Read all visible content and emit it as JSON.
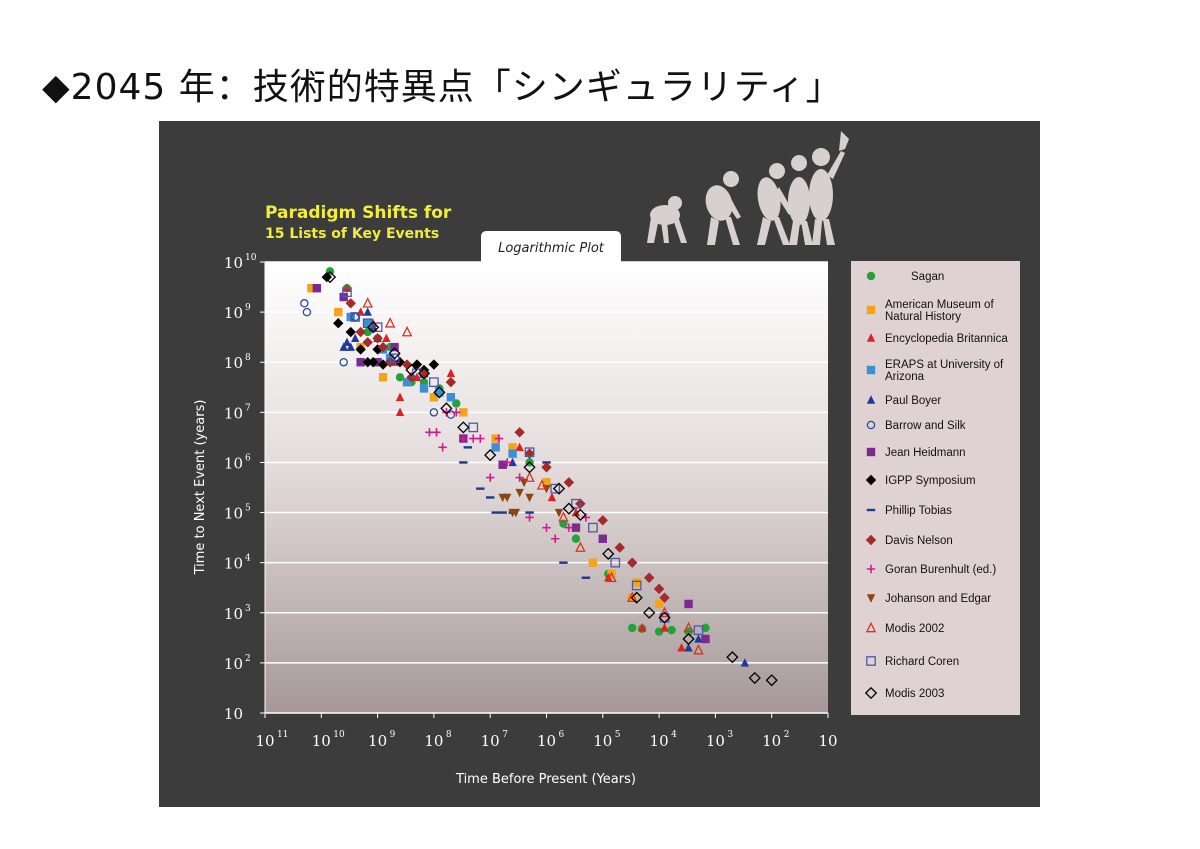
{
  "slide": {
    "title": "◆2045 年：技術的特異点「シンギュラリティ」"
  },
  "figure": {
    "heading_line1": "Paradigm Shifts for",
    "heading_line2": "15 Lists of Key Events",
    "plot_tab": "Logarithmic Plot",
    "xlabel": "Time Before Present (Years)",
    "ylabel": "Time to Next Event (years)"
  },
  "chart_data": {
    "type": "scatter",
    "title": "Paradigm Shifts for 15 Lists of Key Events",
    "subtitle": "Logarithmic Plot",
    "xlabel": "Time Before Present (Years)",
    "ylabel": "Time to Next Event (years)",
    "x_scale": "log",
    "y_scale": "log",
    "x_reversed": true,
    "xlim": [
      100000000000.0,
      10
    ],
    "ylim": [
      10,
      10000000000.0
    ],
    "x_ticks": [
      {
        "base": "10",
        "exp": "11"
      },
      {
        "base": "10",
        "exp": "10"
      },
      {
        "base": "10",
        "exp": "9"
      },
      {
        "base": "10",
        "exp": "8"
      },
      {
        "base": "10",
        "exp": "7"
      },
      {
        "base": "10",
        "exp": "6"
      },
      {
        "base": "10",
        "exp": "5"
      },
      {
        "base": "10",
        "exp": "4"
      },
      {
        "base": "10",
        "exp": "3"
      },
      {
        "base": "10",
        "exp": "2"
      },
      {
        "base": "10",
        "exp": ""
      }
    ],
    "y_ticks": [
      {
        "base": "10",
        "exp": "10"
      },
      {
        "base": "10",
        "exp": "9"
      },
      {
        "base": "10",
        "exp": "8"
      },
      {
        "base": "10",
        "exp": "7"
      },
      {
        "base": "10",
        "exp": "6"
      },
      {
        "base": "10",
        "exp": "5"
      },
      {
        "base": "10",
        "exp": "4"
      },
      {
        "base": "10",
        "exp": "3"
      },
      {
        "base": "10",
        "exp": "2"
      },
      {
        "base": "10",
        "exp": ""
      }
    ],
    "grid": true,
    "legend_position": "right",
    "series": [
      {
        "name": "Sagan",
        "marker": "circle",
        "color": "#22a33a",
        "points": [
          [
            7000000000.0,
            6500000000.0
          ],
          [
            3500000000.0,
            3000000000.0
          ],
          [
            1500000000.0,
            400000000.0
          ],
          [
            1000000000.0,
            300000000.0
          ],
          [
            600000000.0,
            200000000.0
          ],
          [
            400000000.0,
            50000000.0
          ],
          [
            250000000.0,
            40000000.0
          ],
          [
            150000000.0,
            40000000.0
          ],
          [
            80000000.0,
            30000000.0
          ],
          [
            40000000.0,
            15000000.0
          ],
          [
            2000000.0,
            1000000.0
          ],
          [
            1000000.0,
            400000.0
          ],
          [
            500000.0,
            60000.0
          ],
          [
            300000.0,
            30000.0
          ],
          [
            150000.0,
            10000.0
          ],
          [
            80000.0,
            6000.0
          ],
          [
            30000.0,
            500
          ],
          [
            20000.0,
            480
          ],
          [
            10000.0,
            420
          ],
          [
            6000.0,
            450
          ],
          [
            3000.0,
            420
          ],
          [
            1500.0,
            500
          ]
        ]
      },
      {
        "name": "American Museum of Natural History",
        "marker": "square",
        "color": "#f5a31a",
        "points": [
          [
            15000000000.0,
            3000000000.0
          ],
          [
            5000000000.0,
            1000000000.0
          ],
          [
            2000000000.0,
            200000000.0
          ],
          [
            800000000.0,
            50000000.0
          ],
          [
            300000000.0,
            40000000.0
          ],
          [
            100000000.0,
            20000000.0
          ],
          [
            30000000.0,
            10000000.0
          ],
          [
            8000000.0,
            3000000.0
          ],
          [
            4000000.0,
            2000000.0
          ],
          [
            1000000.0,
            400000.0
          ],
          [
            150000.0,
            10000.0
          ],
          [
            70000.0,
            6000.0
          ],
          [
            30000.0,
            2000.0
          ],
          [
            25000.0,
            4000.0
          ],
          [
            10000.0,
            1500.0
          ]
        ]
      },
      {
        "name": "Encyclopedia Britannica",
        "marker": "triangle-up",
        "color": "#e02020",
        "points": [
          [
            3500000000.0,
            3000000000.0
          ],
          [
            2000000000.0,
            1000000000.0
          ],
          [
            1200000000.0,
            600000000.0
          ],
          [
            700000000.0,
            300000000.0
          ],
          [
            500000000.0,
            100000000.0
          ],
          [
            400000000.0,
            20000000.0
          ],
          [
            400000000.0,
            10000000.0
          ],
          [
            200000000.0,
            50000000.0
          ],
          [
            50000000.0,
            60000000.0
          ],
          [
            3000000.0,
            2000000.0
          ],
          [
            800000.0,
            200000.0
          ],
          [
            300000.0,
            100000.0
          ],
          [
            80000.0,
            5000.0
          ],
          [
            20000.0,
            500
          ],
          [
            8000.0,
            500
          ],
          [
            4000.0,
            200
          ]
        ]
      },
      {
        "name": "ERAPS at University of Arizona",
        "marker": "square",
        "color": "#3b8fd6",
        "points": [
          [
            3000000000.0,
            800000000.0
          ],
          [
            1500000000.0,
            600000000.0
          ],
          [
            800000000.0,
            180000000.0
          ],
          [
            600000000.0,
            120000000.0
          ],
          [
            300000000.0,
            40000000.0
          ],
          [
            150000000.0,
            30000000.0
          ],
          [
            80000000.0,
            25000000.0
          ],
          [
            50000000.0,
            20000000.0
          ],
          [
            8000000.0,
            2000000.0
          ],
          [
            4000000.0,
            1500000.0
          ]
        ]
      },
      {
        "name": "Paul Boyer",
        "marker": "triangle-up",
        "color": "#1e3a9a",
        "points": [
          [
            4000000000.0,
            200000000.0
          ],
          [
            3500000000.0,
            250000000.0
          ],
          [
            3000000000.0,
            200000000.0
          ],
          [
            2500000000.0,
            300000000.0
          ],
          [
            2000000000.0,
            100000000.0
          ],
          [
            1500000000.0,
            1000000000.0
          ],
          [
            1200000000.0,
            500000000.0
          ],
          [
            1000000000.0,
            300000000.0
          ],
          [
            4000000.0,
            1000000.0
          ],
          [
            3000.0,
            200
          ],
          [
            2000.0,
            300
          ],
          [
            300,
            100
          ]
        ]
      },
      {
        "name": "Barrow and Silk",
        "marker": "circle-open",
        "color": "#2a4a9a",
        "points": [
          [
            20000000000.0,
            1500000000.0
          ],
          [
            18000000000.0,
            1000000000.0
          ],
          [
            4000000000.0,
            100000000.0
          ],
          [
            2500000000.0,
            800000000.0
          ],
          [
            100000000.0,
            10000000.0
          ],
          [
            50000000.0,
            9000000.0
          ]
        ]
      },
      {
        "name": "Jean Heidmann",
        "marker": "square",
        "color": "#7a2a90",
        "points": [
          [
            12000000000.0,
            3000000000.0
          ],
          [
            4000000000.0,
            2000000000.0
          ],
          [
            2000000000.0,
            100000000.0
          ],
          [
            1000000000.0,
            100000000.0
          ],
          [
            500000000.0,
            200000000.0
          ],
          [
            150000000.0,
            60000000.0
          ],
          [
            30000000.0,
            3000000.0
          ],
          [
            6000000.0,
            900000.0
          ],
          [
            300000.0,
            50000.0
          ],
          [
            100000.0,
            30000.0
          ],
          [
            3000.0,
            1500.0
          ],
          [
            1500.0,
            300
          ]
        ]
      },
      {
        "name": "IGPP Symposium",
        "marker": "diamond",
        "color": "#000000",
        "points": [
          [
            8000000000.0,
            5000000000.0
          ],
          [
            5000000000.0,
            600000000.0
          ],
          [
            3000000000.0,
            400000000.0
          ],
          [
            2000000000.0,
            180000000.0
          ],
          [
            1500000000.0,
            100000000.0
          ],
          [
            1200000000.0,
            100000000.0
          ],
          [
            1000000000.0,
            180000000.0
          ],
          [
            800000000.0,
            90000000.0
          ],
          [
            600000000.0,
            100000000.0
          ],
          [
            400000000.0,
            100000000.0
          ],
          [
            200000000.0,
            90000000.0
          ],
          [
            150000000.0,
            70000000.0
          ],
          [
            100000000.0,
            90000000.0
          ]
        ]
      },
      {
        "name": "Phillip Tobias",
        "marker": "dash",
        "color": "#1e3a8a",
        "points": [
          [
            30000000.0,
            1000000.0
          ],
          [
            25000000.0,
            2000000.0
          ],
          [
            15000000.0,
            300000.0
          ],
          [
            10000000.0,
            200000.0
          ],
          [
            8000000.0,
            100000.0
          ],
          [
            6000000.0,
            100000.0
          ],
          [
            4000000.0,
            100000.0
          ],
          [
            2000000.0,
            100000.0
          ],
          [
            1000000.0,
            1000000.0
          ],
          [
            500000.0,
            10000.0
          ],
          [
            200000.0,
            5000.0
          ]
        ]
      },
      {
        "name": "Davis Nelson",
        "marker": "diamond",
        "color": "#a52a2a",
        "points": [
          [
            3000000000.0,
            1500000000.0
          ],
          [
            2000000000.0,
            400000000.0
          ],
          [
            1500000000.0,
            250000000.0
          ],
          [
            1000000000.0,
            300000000.0
          ],
          [
            800000000.0,
            200000000.0
          ],
          [
            600000000.0,
            100000000.0
          ],
          [
            300000000.0,
            90000000.0
          ],
          [
            250000000.0,
            50000000.0
          ],
          [
            150000000.0,
            60000000.0
          ],
          [
            50000000.0,
            40000000.0
          ],
          [
            3000000.0,
            4000000.0
          ],
          [
            2000000.0,
            1500000.0
          ],
          [
            1000000.0,
            800000.0
          ],
          [
            400000.0,
            400000.0
          ],
          [
            250000.0,
            150000.0
          ],
          [
            100000.0,
            70000.0
          ],
          [
            50000.0,
            20000.0
          ],
          [
            30000.0,
            10000.0
          ],
          [
            15000.0,
            5000.0
          ],
          [
            10000.0,
            3000.0
          ],
          [
            8000.0,
            2000.0
          ]
        ]
      },
      {
        "name": "Goran Burenhult (ed.)",
        "marker": "plus",
        "color": "#d6188f",
        "points": [
          [
            120000000.0,
            4000000.0
          ],
          [
            90000000.0,
            4000000.0
          ],
          [
            70000000.0,
            2000000.0
          ],
          [
            60000000.0,
            10000000.0
          ],
          [
            40000000.0,
            10000000.0
          ],
          [
            30000000.0,
            3000000.0
          ],
          [
            20000000.0,
            3000000.0
          ],
          [
            15000000.0,
            3000000.0
          ],
          [
            10000000.0,
            500000.0
          ],
          [
            7000000.0,
            3000000.0
          ],
          [
            5000000.0,
            1000000.0
          ],
          [
            3000000.0,
            500000.0
          ],
          [
            2000000.0,
            80000.0
          ],
          [
            1000000.0,
            50000.0
          ],
          [
            700000.0,
            30000.0
          ],
          [
            400000.0,
            50000.0
          ],
          [
            200000.0,
            80000.0
          ]
        ]
      },
      {
        "name": "Johanson and Edgar",
        "marker": "triangle-down",
        "color": "#8b4513",
        "points": [
          [
            6000000.0,
            200000.0
          ],
          [
            5000000.0,
            200000.0
          ],
          [
            4000000.0,
            100000.0
          ],
          [
            3500000.0,
            100000.0
          ],
          [
            3000000.0,
            250000.0
          ],
          [
            2500000.0,
            400000.0
          ],
          [
            2000000.0,
            200000.0
          ],
          [
            1000000.0,
            300000.0
          ],
          [
            600000.0,
            100000.0
          ]
        ]
      },
      {
        "name": "Modis 2002",
        "marker": "triangle-open",
        "color": "#e03020",
        "points": [
          [
            1500000000.0,
            1500000000.0
          ],
          [
            600000000.0,
            600000000.0
          ],
          [
            300000000.0,
            400000000.0
          ],
          [
            2000000.0,
            500000.0
          ],
          [
            1200000.0,
            350000.0
          ],
          [
            500000.0,
            80000.0
          ],
          [
            250000.0,
            20000.0
          ],
          [
            70000.0,
            5000.0
          ],
          [
            30000.0,
            2000.0
          ],
          [
            8000.0,
            1000.0
          ],
          [
            3000.0,
            500
          ],
          [
            2000.0,
            180
          ]
        ]
      },
      {
        "name": "Richard Coren",
        "marker": "square-open",
        "color": "#4a5aa8",
        "points": [
          [
            3500000000.0,
            2500000000.0
          ],
          [
            2500000000.0,
            800000000.0
          ],
          [
            1500000000.0,
            600000000.0
          ],
          [
            1000000000.0,
            500000000.0
          ],
          [
            500000000.0,
            120000000.0
          ],
          [
            200000000.0,
            60000000.0
          ],
          [
            100000000.0,
            40000000.0
          ],
          [
            20000000.0,
            5000000.0
          ],
          [
            2000000.0,
            1600000.0
          ],
          [
            700000.0,
            300000.0
          ],
          [
            300000.0,
            150000.0
          ],
          [
            150000.0,
            50000.0
          ],
          [
            60000.0,
            10000.0
          ],
          [
            25000.0,
            3500.0
          ],
          [
            8000.0,
            800
          ],
          [
            2000.0,
            450
          ]
        ]
      },
      {
        "name": "Modis 2003",
        "marker": "diamond-open",
        "color": "#000000",
        "points": [
          [
            7000000000.0,
            5000000000.0
          ],
          [
            1200000000.0,
            500000000.0
          ],
          [
            500000000.0,
            150000000.0
          ],
          [
            250000000.0,
            70000000.0
          ],
          [
            150000000.0,
            60000000.0
          ],
          [
            80000000.0,
            25000000.0
          ],
          [
            60000000.0,
            12000000.0
          ],
          [
            30000000.0,
            5000000.0
          ],
          [
            10000000.0,
            1400000.0
          ],
          [
            2000000.0,
            800000.0
          ],
          [
            600000.0,
            300000.0
          ],
          [
            400000.0,
            120000.0
          ],
          [
            250000.0,
            90000.0
          ],
          [
            80000.0,
            15000.0
          ],
          [
            25000.0,
            2000.0
          ],
          [
            15000.0,
            1000.0
          ],
          [
            8000.0,
            800
          ],
          [
            3000.0,
            300
          ],
          [
            500,
            130
          ],
          [
            200,
            50
          ],
          [
            100,
            45
          ]
        ]
      }
    ]
  }
}
